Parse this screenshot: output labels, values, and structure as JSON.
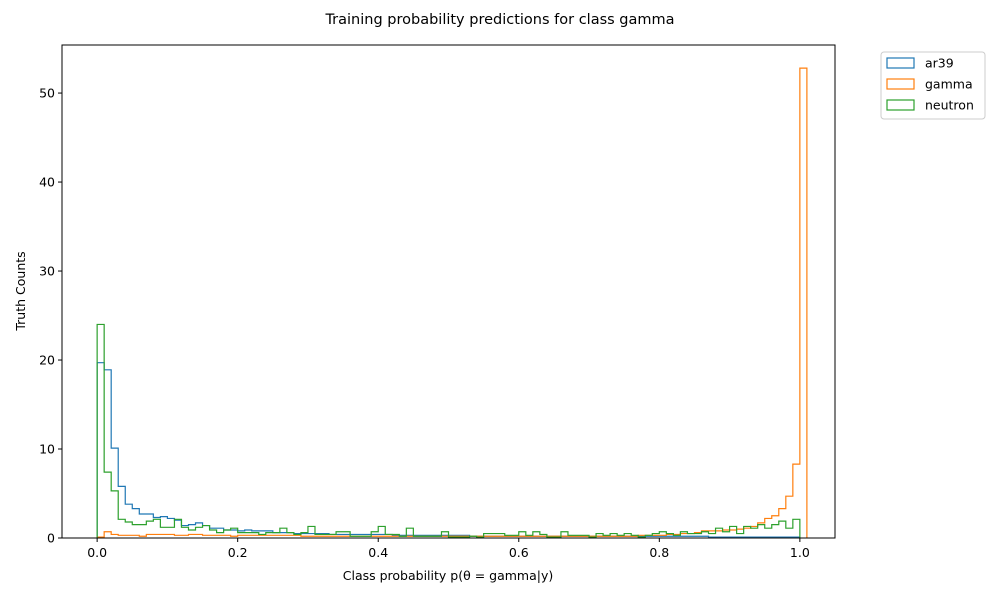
{
  "chart_data": {
    "type": "histogram",
    "title": "Training probability predictions for class gamma",
    "xlabel": "Class probability p(θ = gamma|y)",
    "ylabel": "Truth Counts",
    "xlim": [
      -0.05,
      1.05
    ],
    "ylim": [
      0,
      55.4
    ],
    "xticks": [
      0.0,
      0.2,
      0.4,
      0.6,
      0.8,
      1.0
    ],
    "xtick_labels": [
      "0.0",
      "0.2",
      "0.4",
      "0.6",
      "0.8",
      "1.0"
    ],
    "yticks": [
      0,
      10,
      20,
      30,
      40,
      50
    ],
    "ytick_labels": [
      "0",
      "10",
      "20",
      "30",
      "40",
      "50"
    ],
    "grid": false,
    "legend_position": "outside-top-right",
    "bin_edges_start": 0.0,
    "bin_width": 0.01,
    "series": [
      {
        "name": "ar39",
        "color": "#1f77b4",
        "values": [
          19.7,
          18.9,
          10.1,
          5.8,
          3.8,
          3.3,
          2.7,
          2.7,
          2.3,
          2.4,
          2.2,
          2.0,
          1.4,
          1.5,
          1.7,
          1.4,
          1.1,
          1.1,
          0.9,
          0.9,
          0.8,
          0.9,
          0.8,
          0.8,
          0.8,
          0.6,
          0.6,
          0.6,
          0.5,
          0.5,
          0.5,
          0.5,
          0.5,
          0.4,
          0.4,
          0.4,
          0.4,
          0.4,
          0.4,
          0.4,
          0.4,
          0.4,
          0.3,
          0.3,
          0.3,
          0.3,
          0.3,
          0.3,
          0.3,
          0.3,
          0.3,
          0.3,
          0.3,
          0.2,
          0.2,
          0.2,
          0.2,
          0.2,
          0.2,
          0.2,
          0.2,
          0.2,
          0.2,
          0.2,
          0.2,
          0.2,
          0.2,
          0.2,
          0.2,
          0.2,
          0.2,
          0.2,
          0.2,
          0.2,
          0.2,
          0.2,
          0.2,
          0.2,
          0.2,
          0.2,
          0.2,
          0.2,
          0.2,
          0.2,
          0.2,
          0.2,
          0.2,
          0.1,
          0.1,
          0.1,
          0.1,
          0.1,
          0.1,
          0.1,
          0.1,
          0.1,
          0.1,
          0.1,
          0.1,
          0.1
        ]
      },
      {
        "name": "gamma",
        "color": "#ff7f0e",
        "values": [
          0.1,
          0.7,
          0.4,
          0.3,
          0.3,
          0.3,
          0.2,
          0.4,
          0.4,
          0.4,
          0.4,
          0.3,
          0.3,
          0.4,
          0.4,
          0.3,
          0.3,
          0.3,
          0.3,
          0.2,
          0.3,
          0.3,
          0.3,
          0.3,
          0.3,
          0.3,
          0.3,
          0.3,
          0.3,
          0.2,
          0.2,
          0.2,
          0.2,
          0.2,
          0.2,
          0.2,
          0.2,
          0.2,
          0.2,
          0.2,
          0.2,
          0.2,
          0.2,
          0.2,
          0.2,
          0.2,
          0.2,
          0.2,
          0.2,
          0.2,
          0.2,
          0.2,
          0.2,
          0.2,
          0.2,
          0.2,
          0.2,
          0.2,
          0.2,
          0.2,
          0.2,
          0.2,
          0.2,
          0.2,
          0.2,
          0.2,
          0.2,
          0.2,
          0.2,
          0.2,
          0.2,
          0.2,
          0.2,
          0.2,
          0.2,
          0.2,
          0.2,
          0.3,
          0.3,
          0.3,
          0.3,
          0.4,
          0.4,
          0.5,
          0.5,
          0.6,
          0.8,
          0.8,
          0.8,
          0.9,
          0.9,
          1.0,
          1.1,
          1.3,
          1.7,
          2.2,
          2.5,
          3.3,
          4.7,
          8.3,
          52.8
        ]
      },
      {
        "name": "neutron",
        "color": "#2ca02c",
        "values": [
          24.0,
          7.4,
          5.3,
          2.1,
          1.8,
          1.5,
          1.5,
          1.9,
          2.1,
          1.2,
          1.2,
          2.1,
          1.2,
          0.9,
          1.2,
          1.4,
          0.9,
          0.6,
          0.9,
          1.1,
          0.6,
          0.6,
          0.6,
          0.4,
          0.6,
          0.6,
          1.1,
          0.6,
          0.4,
          0.6,
          1.3,
          0.4,
          0.4,
          0.4,
          0.7,
          0.7,
          0.2,
          0.2,
          0.2,
          0.7,
          1.3,
          0.4,
          0.4,
          0.2,
          1.1,
          0.2,
          0.2,
          0.2,
          0.2,
          0.7,
          0.1,
          0.1,
          0.1,
          0.2,
          0.1,
          0.5,
          0.5,
          0.5,
          0.3,
          0.3,
          0.7,
          0.3,
          0.7,
          0.4,
          0.1,
          0.1,
          0.7,
          0.3,
          0.3,
          0.3,
          0.1,
          0.5,
          0.3,
          0.5,
          0.3,
          0.5,
          0.3,
          0.1,
          0.3,
          0.5,
          0.7,
          0.5,
          0.3,
          0.7,
          0.5,
          0.5,
          0.7,
          0.5,
          1.1,
          0.7,
          1.3,
          0.5,
          1.3,
          1.1,
          1.5,
          1.1,
          1.5,
          1.9,
          1.1,
          2.1
        ]
      }
    ]
  }
}
